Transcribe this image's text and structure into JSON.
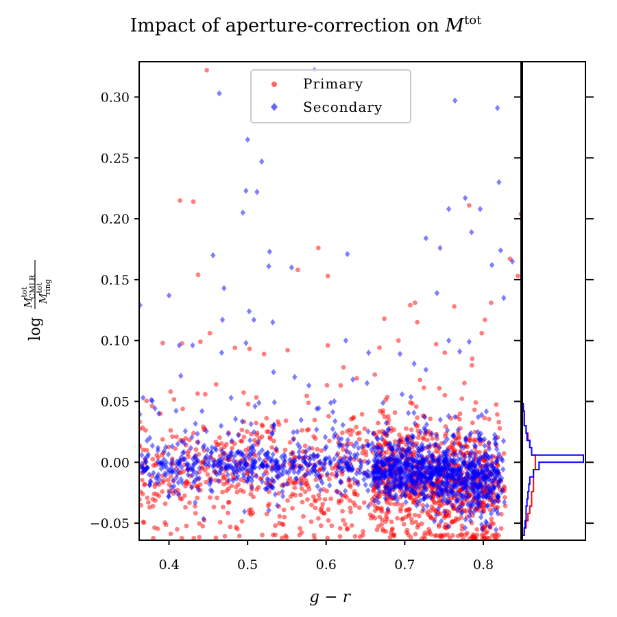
{
  "chart_data": {
    "type": "scatter",
    "title": "Impact of aperture-correction on M^tot",
    "title_text": "Impact of aperture-correction on ",
    "title_math": "M",
    "title_sup": "tot",
    "xlabel": "g − r",
    "ylabel": "log M^tot_CMLR / M^tot_ring",
    "ylabel_parts": {
      "prefix": "log",
      "num_sym": "M",
      "num_sup": "tot",
      "num_sub": "CMLR",
      "den_sym": "M",
      "den_sup": "tot",
      "den_sub": "ring"
    },
    "xlim": [
      0.362,
      0.848
    ],
    "ylim": [
      -0.064,
      0.329
    ],
    "xticks": [
      0.4,
      0.5,
      0.6,
      0.7,
      0.8
    ],
    "xtick_labels": [
      "0.4",
      "0.5",
      "0.6",
      "0.7",
      "0.8"
    ],
    "yticks": [
      0.3,
      0.25,
      0.2,
      0.15,
      0.1,
      0.05,
      0.0,
      -0.05
    ],
    "ytick_labels": [
      "0.30",
      "0.25",
      "0.20",
      "0.15",
      "0.10",
      "0.05",
      "0.00",
      "−0.05"
    ],
    "legend": {
      "position": "upper-center",
      "entries": [
        "Primary",
        "Secondary"
      ]
    },
    "series": [
      {
        "name": "Primary",
        "marker": "circle",
        "color": "#ff0000",
        "outliers": [
          [
            0.448,
            0.322
          ],
          [
            0.414,
            0.215
          ],
          [
            0.431,
            0.214
          ],
          [
            0.59,
            0.176
          ],
          [
            0.564,
            0.158
          ],
          [
            0.602,
            0.153
          ],
          [
            0.437,
            0.154
          ],
          [
            0.392,
            0.098
          ],
          [
            0.44,
            0.099
          ],
          [
            0.452,
            0.106
          ],
          [
            0.484,
            0.094
          ],
          [
            0.622,
            0.078
          ],
          [
            0.639,
            0.069
          ],
          [
            0.662,
            0.072
          ],
          [
            0.707,
            0.129
          ],
          [
            0.713,
            0.131
          ],
          [
            0.716,
            0.115
          ],
          [
            0.782,
            0.211
          ],
          [
            0.81,
            0.131
          ],
          [
            0.834,
            0.167
          ],
          [
            0.844,
            0.153
          ],
          [
            0.848,
            0.204
          ],
          [
            0.802,
            0.117
          ],
          [
            0.674,
            0.118
          ],
          [
            0.751,
            0.09
          ],
          [
            0.763,
            0.128
          ],
          [
            0.798,
            0.106
          ],
          [
            0.521,
            0.089
          ],
          [
            0.551,
            0.092
          ],
          [
            0.602,
            0.096
          ],
          [
            0.46,
            0.064
          ],
          [
            0.402,
            0.058
          ],
          [
            0.74,
            0.097
          ],
          [
            0.692,
            0.1
          ],
          [
            0.786,
            0.085
          ]
        ],
        "bulk": {
          "n": 1400,
          "x_range": [
            0.362,
            0.848
          ],
          "y_center": -0.012,
          "y_spread": 0.026
        },
        "hist": {
          "bin_edges": [
            -0.06,
            -0.054,
            -0.048,
            -0.042,
            -0.036,
            -0.03,
            -0.024,
            -0.018,
            -0.012,
            -0.006,
            0.0,
            0.006,
            0.012,
            0.018,
            0.024,
            0.03,
            0.036,
            0.042,
            0.048
          ],
          "counts": [
            1,
            2,
            3,
            4,
            5,
            5,
            6,
            6,
            6,
            7,
            7,
            5,
            4,
            3,
            2,
            1,
            1,
            0.5
          ]
        }
      },
      {
        "name": "Secondary",
        "marker": "diamond",
        "color": "#0000ff",
        "outliers": [
          [
            0.585,
            0.322
          ],
          [
            0.464,
            0.303
          ],
          [
            0.764,
            0.297
          ],
          [
            0.818,
            0.291
          ],
          [
            0.5,
            0.265
          ],
          [
            0.518,
            0.247
          ],
          [
            0.498,
            0.223
          ],
          [
            0.512,
            0.222
          ],
          [
            0.777,
            0.217
          ],
          [
            0.756,
            0.208
          ],
          [
            0.796,
            0.208
          ],
          [
            0.82,
            0.23
          ],
          [
            0.494,
            0.205
          ],
          [
            0.785,
            0.189
          ],
          [
            0.727,
            0.184
          ],
          [
            0.745,
            0.176
          ],
          [
            0.627,
            0.171
          ],
          [
            0.528,
            0.173
          ],
          [
            0.527,
            0.161
          ],
          [
            0.556,
            0.16
          ],
          [
            0.456,
            0.17
          ],
          [
            0.822,
            0.174
          ],
          [
            0.837,
            0.165
          ],
          [
            0.811,
            0.162
          ],
          [
            0.363,
            0.129
          ],
          [
            0.4,
            0.137
          ],
          [
            0.47,
            0.143
          ],
          [
            0.826,
            0.135
          ],
          [
            0.741,
            0.139
          ],
          [
            0.502,
            0.124
          ],
          [
            0.508,
            0.117
          ],
          [
            0.468,
            0.117
          ],
          [
            0.532,
            0.115
          ],
          [
            0.413,
            0.096
          ],
          [
            0.43,
            0.096
          ],
          [
            0.467,
            0.09
          ],
          [
            0.498,
            0.098
          ],
          [
            0.625,
            0.1
          ],
          [
            0.654,
            0.09
          ],
          [
            0.77,
            0.091
          ],
          [
            0.782,
            0.099
          ],
          [
            0.727,
            0.076
          ],
          [
            0.694,
            0.089
          ],
          [
            0.712,
            0.081
          ],
          [
            0.634,
            0.068
          ],
          [
            0.652,
            0.065
          ],
          [
            0.415,
            0.071
          ],
          [
            0.533,
            0.074
          ],
          [
            0.56,
            0.07
          ],
          [
            0.367,
            0.053
          ],
          [
            0.387,
            0.04
          ],
          [
            0.442,
            0.042
          ],
          [
            0.578,
            0.063
          ],
          [
            0.756,
            0.1
          ]
        ],
        "bulk": {
          "n": 1500,
          "x_range": [
            0.362,
            0.848
          ],
          "y_center": -0.003,
          "y_spread": 0.014
        },
        "hist": {
          "bin_edges": [
            -0.06,
            -0.054,
            -0.048,
            -0.042,
            -0.036,
            -0.03,
            -0.024,
            -0.018,
            -0.012,
            -0.006,
            0.0,
            0.006,
            0.012,
            0.018,
            0.024,
            0.03,
            0.036,
            0.042,
            0.048
          ],
          "counts": [
            1,
            1.5,
            2,
            2,
            2.5,
            3,
            3.5,
            4,
            6,
            9,
            33,
            5,
            4,
            2.5,
            2,
            1,
            1,
            0.5
          ]
        }
      }
    ]
  }
}
